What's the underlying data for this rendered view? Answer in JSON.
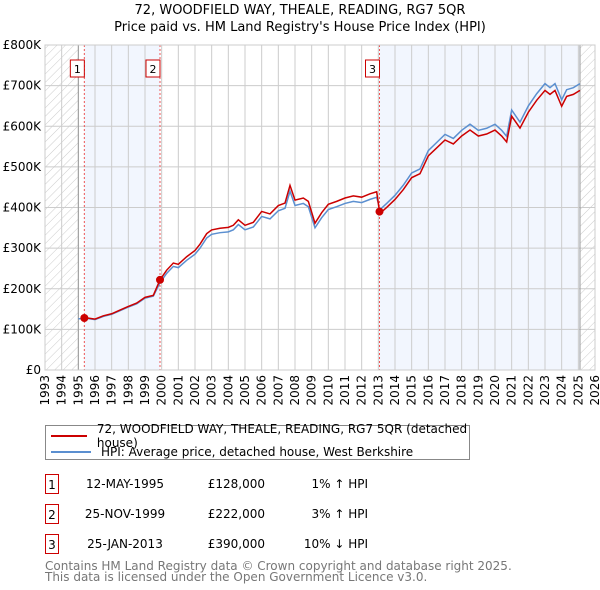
{
  "title_line1": "72, WOODFIELD WAY, THEALE, READING, RG7 5QR",
  "title_line2": "Price paid vs. HM Land Registry's House Price Index (HPI)",
  "chart_data": {
    "type": "line",
    "title": "72, WOODFIELD WAY, THEALE, READING, RG7 5QR - Price paid vs. HM Land Registry's House Price Index (HPI)",
    "xlim": [
      1993,
      2026
    ],
    "ylim": [
      0,
      800000
    ],
    "x_ticks": [
      "1993",
      "1994",
      "1995",
      "1996",
      "1997",
      "1998",
      "1999",
      "2000",
      "2001",
      "2002",
      "2003",
      "2004",
      "2005",
      "2006",
      "2007",
      "2008",
      "2009",
      "2010",
      "2011",
      "2012",
      "2013",
      "2014",
      "2015",
      "2016",
      "2017",
      "2018",
      "2019",
      "2020",
      "2021",
      "2022",
      "2023",
      "2024",
      "2025",
      "2026"
    ],
    "y_ticks": [
      {
        "value": 0,
        "label": "£0"
      },
      {
        "value": 100000,
        "label": "£100K"
      },
      {
        "value": 200000,
        "label": "£200K"
      },
      {
        "value": 300000,
        "label": "£300K"
      },
      {
        "value": 400000,
        "label": "£400K"
      },
      {
        "value": 500000,
        "label": "£500K"
      },
      {
        "value": 600000,
        "label": "£600K"
      },
      {
        "value": 700000,
        "label": "£700K"
      },
      {
        "value": 800000,
        "label": "£800K"
      }
    ],
    "grid": true,
    "hatched_ranges": [
      [
        1993,
        1995.0
      ],
      [
        2025.1,
        2026
      ]
    ],
    "shaded_ranges": [
      [
        1995.36,
        1999.9
      ],
      [
        2013.07,
        2025.1
      ]
    ],
    "colors": {
      "property": "#cc0000",
      "hpi": "#5b8fd0"
    },
    "series": [
      {
        "name": "HPI: Average price, detached house, West Berkshire",
        "key": "hpi",
        "x": [
          1995.0,
          1995.5,
          1996,
          1996.5,
          1997,
          1997.5,
          1998,
          1998.5,
          1999,
          1999.5,
          1999.9,
          2000.3,
          2000.7,
          2001,
          2001.5,
          2002,
          2002.3,
          2002.7,
          2003,
          2003.5,
          2004,
          2004.3,
          2004.6,
          2005,
          2005.5,
          2006,
          2006.5,
          2007,
          2007.4,
          2007.7,
          2008,
          2008.5,
          2008.8,
          2009.2,
          2009.6,
          2010,
          2010.5,
          2011,
          2011.5,
          2012,
          2012.5,
          2012.9,
          2013.1,
          2013.5,
          2014,
          2014.5,
          2015,
          2015.5,
          2016,
          2016.5,
          2017,
          2017.5,
          2018,
          2018.5,
          2019,
          2019.5,
          2020,
          2020.4,
          2020.7,
          2021,
          2021.5,
          2022,
          2022.5,
          2023,
          2023.3,
          2023.6,
          2024,
          2024.3,
          2024.7,
          2025.1
        ],
        "y": [
          126000,
          127000,
          124000,
          132000,
          137000,
          146000,
          155000,
          163000,
          177000,
          182000,
          215000,
          238000,
          255000,
          252000,
          270000,
          285000,
          300000,
          325000,
          334000,
          338000,
          340000,
          345000,
          358000,
          345000,
          352000,
          378000,
          372000,
          392000,
          398000,
          440000,
          405000,
          410000,
          402000,
          350000,
          375000,
          395000,
          402000,
          410000,
          415000,
          412000,
          420000,
          425000,
          395000,
          410000,
          430000,
          455000,
          485000,
          495000,
          540000,
          560000,
          580000,
          570000,
          590000,
          605000,
          590000,
          595000,
          605000,
          590000,
          575000,
          640000,
          610000,
          650000,
          680000,
          705000,
          695000,
          705000,
          665000,
          690000,
          695000,
          705000
        ]
      },
      {
        "name": "72, WOODFIELD WAY, THEALE, READING, RG7 5QR (detached house)",
        "key": "property"
      }
    ],
    "sales": [
      {
        "label": "1",
        "x": 1995.36,
        "price": 128000
      },
      {
        "label": "2",
        "x": 1999.9,
        "price": 222000
      },
      {
        "label": "3",
        "x": 2013.07,
        "price": 390000
      }
    ]
  },
  "legend": {
    "property": "72, WOODFIELD WAY, THEALE, READING, RG7 5QR (detached house)",
    "hpi": "HPI: Average price, detached house, West Berkshire"
  },
  "transactions": [
    {
      "num": "1",
      "date": "12-MAY-1995",
      "price": "£128,000",
      "hpi": "1% ↑ HPI"
    },
    {
      "num": "2",
      "date": "25-NOV-1999",
      "price": "£222,000",
      "hpi": "3% ↑ HPI"
    },
    {
      "num": "3",
      "date": "25-JAN-2013",
      "price": "£390,000",
      "hpi": "10% ↓ HPI"
    }
  ],
  "footer_line1": "Contains HM Land Registry data © Crown copyright and database right 2025.",
  "footer_line2": "This data is licensed under the Open Government Licence v3.0."
}
